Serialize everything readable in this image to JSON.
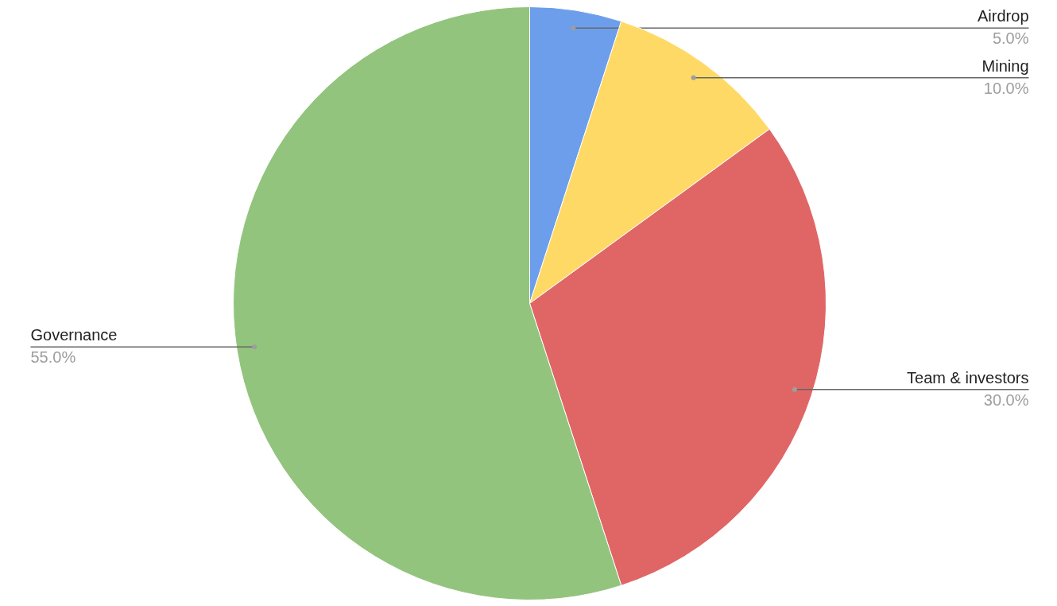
{
  "chart_data": {
    "type": "pie",
    "categories": [
      "Airdrop",
      "Mining",
      "Team & investors",
      "Governance"
    ],
    "values": [
      5,
      10,
      30,
      55
    ],
    "colors": [
      "#6d9eeb",
      "#ffd966",
      "#e06666",
      "#93c47d"
    ],
    "value_labels": [
      "5.0%",
      "10.0%",
      "30.0%",
      "55.0%"
    ]
  }
}
